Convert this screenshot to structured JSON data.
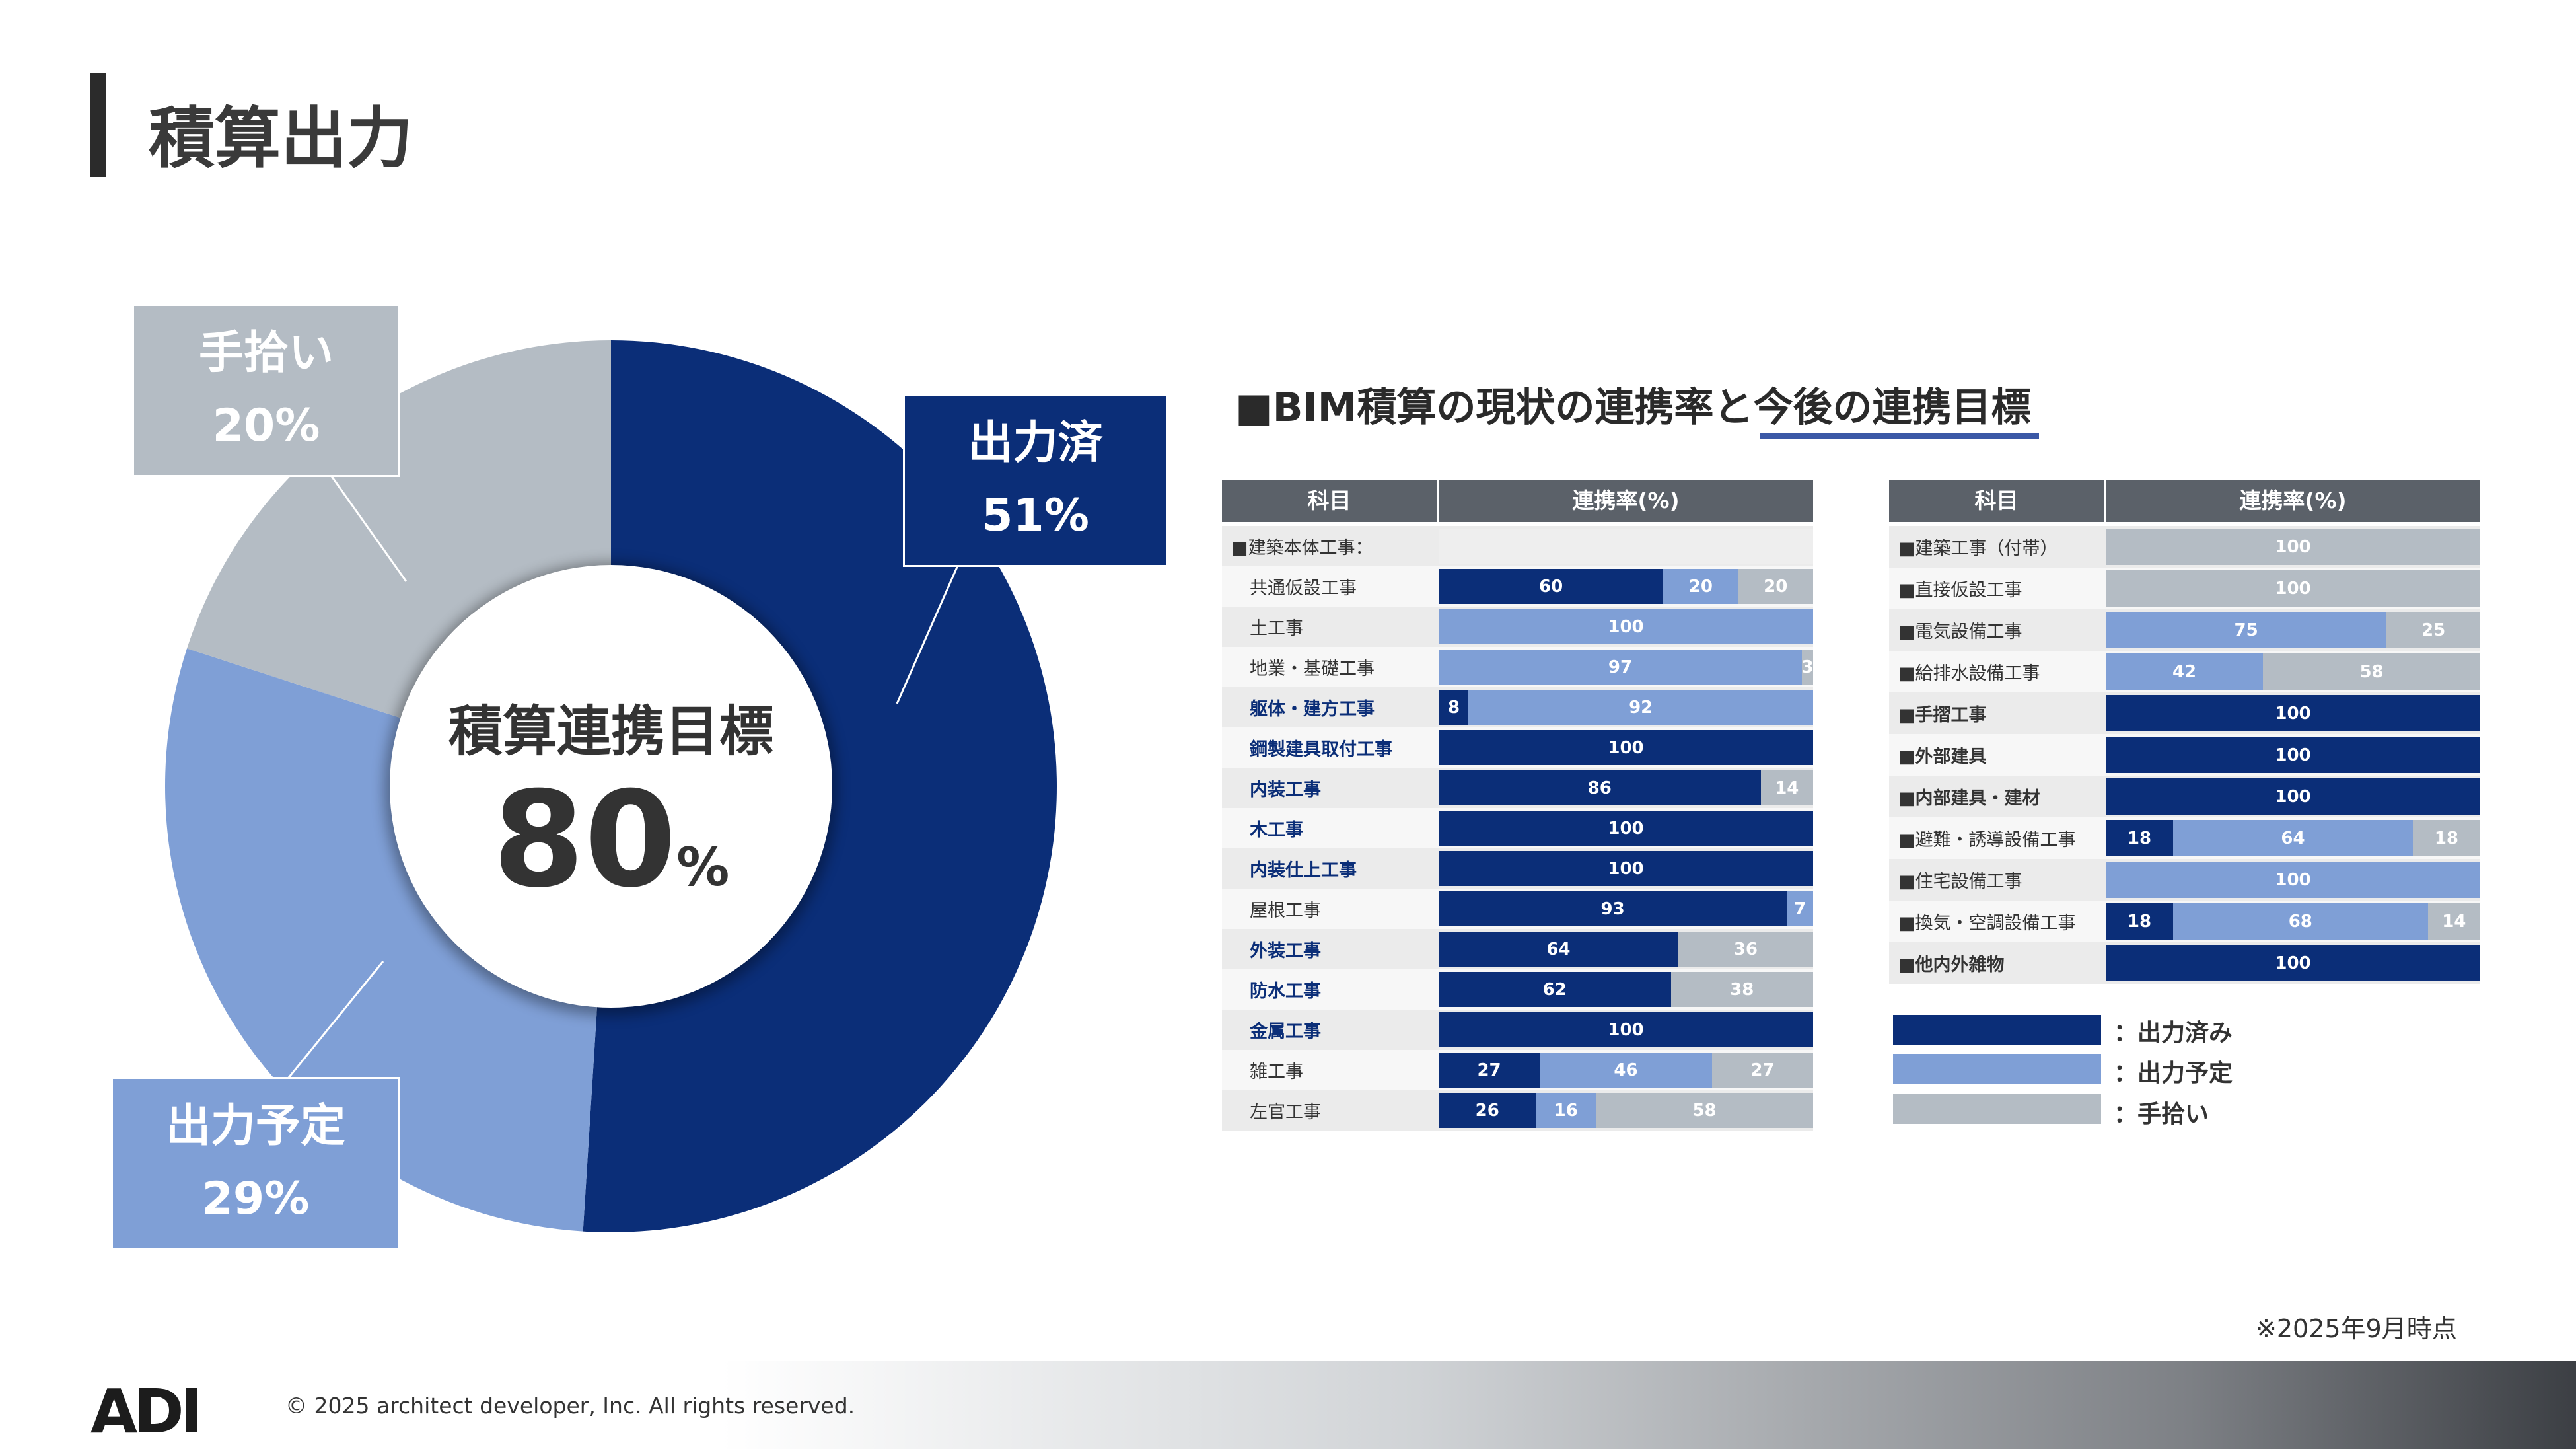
{
  "page_title": "積算出力",
  "donut": {
    "center_label": "積算連携目標",
    "center_value": "80",
    "center_unit": "%",
    "callouts": {
      "done": {
        "name": "出力済",
        "pct": "51%"
      },
      "manual": {
        "name": "手拾い",
        "pct": "20%"
      },
      "planned": {
        "name": "出力予定",
        "pct": "29%"
      }
    }
  },
  "table_heading": {
    "prefix": "■BIM積算の現状の連携率と",
    "underlined": "今後の連携目標"
  },
  "table_headers": {
    "subject": "科目",
    "rate": "連携率(%)"
  },
  "legend": {
    "done": "：出力済み",
    "planned": "：出力予定",
    "manual": "：手拾い"
  },
  "as_of": "※2025年9月時点",
  "footer": {
    "logo": "ADI",
    "copyright": "© 2025 architect developer, Inc. All rights reserved."
  },
  "colors": {
    "done": "#0b2e78",
    "planned": "#7f9fd6",
    "manual": "#b4bcc4"
  },
  "chart_data": [
    {
      "type": "pie",
      "title": "積算連携目標",
      "categories": [
        "出力済",
        "出力予定",
        "手拾い"
      ],
      "values": [
        51,
        29,
        20
      ]
    },
    {
      "type": "bar",
      "stacked": true,
      "series": [
        {
          "name": "出力済み"
        },
        {
          "name": "出力予定"
        },
        {
          "name": "手拾い"
        }
      ],
      "rows": [
        {
          "label": "■建築本体工事：",
          "group": true,
          "values": null
        },
        {
          "label": "共通仮設工事",
          "bold": false,
          "values": [
            60,
            20,
            20
          ]
        },
        {
          "label": "土工事",
          "bold": false,
          "values": [
            0,
            100,
            0
          ]
        },
        {
          "label": "地業・基礎工事",
          "bold": false,
          "values": [
            0,
            97,
            3
          ]
        },
        {
          "label": "躯体・建方工事",
          "bold": true,
          "values": [
            8,
            92,
            0
          ]
        },
        {
          "label": "鋼製建具取付工事",
          "bold": true,
          "values": [
            100,
            0,
            0
          ]
        },
        {
          "label": "内装工事",
          "bold": true,
          "values": [
            86,
            0,
            14
          ]
        },
        {
          "label": "木工事",
          "bold": true,
          "values": [
            100,
            0,
            0
          ]
        },
        {
          "label": "内装仕上工事",
          "bold": true,
          "values": [
            100,
            0,
            0
          ]
        },
        {
          "label": "屋根工事",
          "bold": false,
          "values": [
            93,
            7,
            0
          ]
        },
        {
          "label": "外装工事",
          "bold": true,
          "values": [
            64,
            0,
            36
          ]
        },
        {
          "label": "防水工事",
          "bold": true,
          "values": [
            62,
            0,
            38
          ]
        },
        {
          "label": "金属工事",
          "bold": true,
          "values": [
            100,
            0,
            0
          ]
        },
        {
          "label": "雑工事",
          "bold": false,
          "values": [
            27,
            46,
            27
          ]
        },
        {
          "label": "左官工事",
          "bold": false,
          "values": [
            26,
            16,
            58
          ]
        }
      ]
    },
    {
      "type": "bar",
      "stacked": true,
      "series": [
        {
          "name": "出力済み"
        },
        {
          "name": "出力予定"
        },
        {
          "name": "手拾い"
        }
      ],
      "rows": [
        {
          "label": "■建築工事（付帯）",
          "bold": false,
          "values": [
            0,
            0,
            100
          ]
        },
        {
          "label": "■直接仮設工事",
          "bold": false,
          "values": [
            0,
            0,
            100
          ]
        },
        {
          "label": "■電気設備工事",
          "bold": false,
          "values": [
            0,
            75,
            25
          ]
        },
        {
          "label": "■給排水設備工事",
          "bold": false,
          "values": [
            0,
            42,
            58
          ]
        },
        {
          "label": "■手摺工事",
          "bold": true,
          "values": [
            100,
            0,
            0
          ]
        },
        {
          "label": "■外部建具",
          "bold": true,
          "values": [
            100,
            0,
            0
          ]
        },
        {
          "label": "■内部建具・建材",
          "bold": true,
          "values": [
            100,
            0,
            0
          ]
        },
        {
          "label": "■避難・誘導設備工事",
          "bold": false,
          "values": [
            18,
            64,
            18
          ]
        },
        {
          "label": "■住宅設備工事",
          "bold": false,
          "values": [
            0,
            100,
            0
          ]
        },
        {
          "label": "■換気・空調設備工事",
          "bold": false,
          "values": [
            18,
            68,
            14
          ]
        },
        {
          "label": "■他内外雑物",
          "bold": true,
          "values": [
            100,
            0,
            0
          ]
        }
      ]
    }
  ]
}
